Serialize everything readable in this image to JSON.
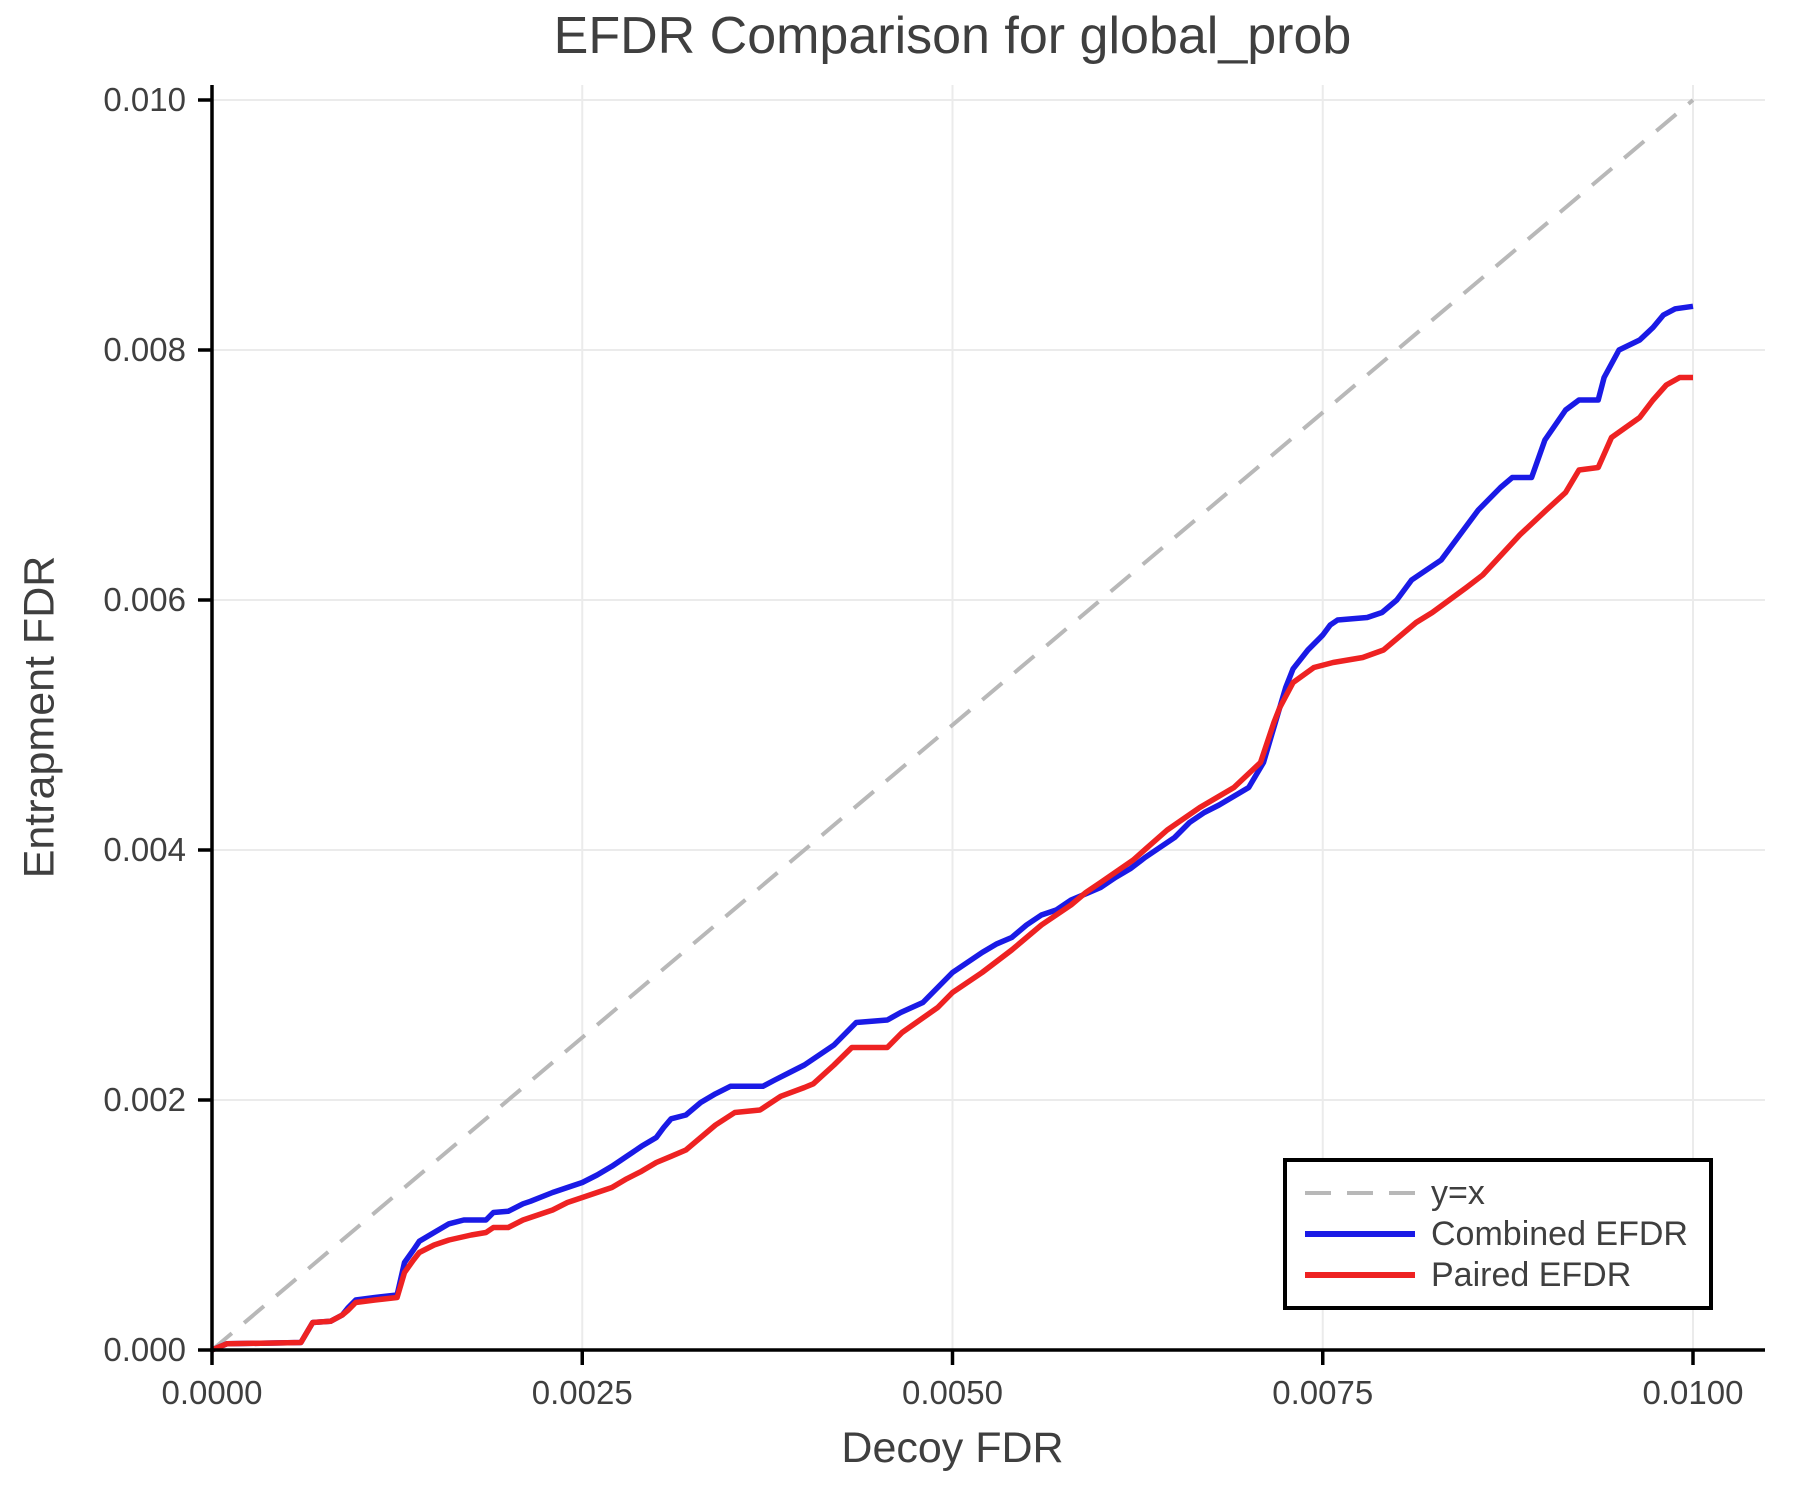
{
  "title": "EFDR Comparison for global_prob",
  "colors": {
    "background": "#ffffff",
    "text": "#3f3f3f",
    "axis": "#000000",
    "grid": "#ebebeb",
    "identity_line": "#b8b8b8",
    "combined_efdr": "#1a1ae6",
    "paired_efdr": "#ee2222"
  },
  "legend": {
    "position": "lower right",
    "entries": [
      "y=x",
      "Combined EFDR",
      "Paired EFDR"
    ]
  },
  "chart_data": {
    "type": "line",
    "title": "EFDR Comparison for global_prob",
    "xlabel": "Decoy FDR",
    "ylabel": "Entrapment FDR",
    "xlim": [
      0.0,
      0.01
    ],
    "ylim": [
      0.0,
      0.01
    ],
    "grid": true,
    "legend_position": "lower right",
    "x_ticks": [
      0.0,
      0.0025,
      0.005,
      0.0075,
      0.01
    ],
    "x_tick_labels": [
      "0.0000",
      "0.0025",
      "0.0050",
      "0.0075",
      "0.0100"
    ],
    "y_ticks": [
      0.0,
      0.002,
      0.004,
      0.006,
      0.008,
      0.01
    ],
    "y_tick_labels": [
      "0.000",
      "0.002",
      "0.004",
      "0.006",
      "0.008",
      "0.010"
    ],
    "series": [
      {
        "name": "y=x",
        "style": "dashed",
        "color": "#b8b8b8",
        "points": [
          [
            0.0,
            0.0
          ],
          [
            0.01,
            0.01
          ]
        ]
      },
      {
        "name": "Combined EFDR",
        "style": "solid",
        "color": "#1a1ae6",
        "points": [
          [
            0.0,
            0.0
          ],
          [
            0.0001,
            5e-05
          ],
          [
            0.0006,
            6e-05
          ],
          [
            0.00068,
            0.00022
          ],
          [
            0.0008,
            0.00023
          ],
          [
            0.00088,
            0.00028
          ],
          [
            0.00092,
            0.00034
          ],
          [
            0.00097,
            0.0004
          ],
          [
            0.0011,
            0.00042
          ],
          [
            0.00125,
            0.00044
          ],
          [
            0.0013,
            0.0007
          ],
          [
            0.00136,
            0.0008
          ],
          [
            0.0014,
            0.00087
          ],
          [
            0.0015,
            0.00094
          ],
          [
            0.0016,
            0.00101
          ],
          [
            0.0017,
            0.00104
          ],
          [
            0.00185,
            0.00104
          ],
          [
            0.0019,
            0.0011
          ],
          [
            0.002,
            0.00111
          ],
          [
            0.0021,
            0.00117
          ],
          [
            0.00215,
            0.00119
          ],
          [
            0.0023,
            0.00126
          ],
          [
            0.0024,
            0.0013
          ],
          [
            0.0025,
            0.00134
          ],
          [
            0.0026,
            0.0014
          ],
          [
            0.0027,
            0.00147
          ],
          [
            0.0028,
            0.00155
          ],
          [
            0.0029,
            0.00163
          ],
          [
            0.003,
            0.0017
          ],
          [
            0.00305,
            0.00178
          ],
          [
            0.0031,
            0.00185
          ],
          [
            0.0032,
            0.00188
          ],
          [
            0.0033,
            0.00198
          ],
          [
            0.0034,
            0.00205
          ],
          [
            0.0035,
            0.00211
          ],
          [
            0.00372,
            0.00211
          ],
          [
            0.0038,
            0.00216
          ],
          [
            0.0039,
            0.00222
          ],
          [
            0.004,
            0.00228
          ],
          [
            0.0041,
            0.00236
          ],
          [
            0.0042,
            0.00244
          ],
          [
            0.00425,
            0.0025
          ],
          [
            0.00435,
            0.00262
          ],
          [
            0.00456,
            0.00264
          ],
          [
            0.00465,
            0.0027
          ],
          [
            0.0048,
            0.00278
          ],
          [
            0.0049,
            0.0029
          ],
          [
            0.005,
            0.00302
          ],
          [
            0.0051,
            0.0031
          ],
          [
            0.0052,
            0.00318
          ],
          [
            0.0053,
            0.00325
          ],
          [
            0.0054,
            0.0033
          ],
          [
            0.0055,
            0.0034
          ],
          [
            0.0056,
            0.00348
          ],
          [
            0.0057,
            0.00352
          ],
          [
            0.0058,
            0.0036
          ],
          [
            0.0059,
            0.00365
          ],
          [
            0.006,
            0.0037
          ],
          [
            0.0061,
            0.00378
          ],
          [
            0.0062,
            0.00385
          ],
          [
            0.0063,
            0.00394
          ],
          [
            0.0064,
            0.00402
          ],
          [
            0.0065,
            0.0041
          ],
          [
            0.0066,
            0.00422
          ],
          [
            0.0067,
            0.0043
          ],
          [
            0.0068,
            0.00436
          ],
          [
            0.0069,
            0.00443
          ],
          [
            0.007,
            0.0045
          ],
          [
            0.0071,
            0.0047
          ],
          [
            0.00715,
            0.0049
          ],
          [
            0.0072,
            0.0051
          ],
          [
            0.00725,
            0.0053
          ],
          [
            0.0073,
            0.00545
          ],
          [
            0.0074,
            0.0056
          ],
          [
            0.0075,
            0.00572
          ],
          [
            0.00755,
            0.0058
          ],
          [
            0.0076,
            0.00584
          ],
          [
            0.0078,
            0.00586
          ],
          [
            0.0079,
            0.0059
          ],
          [
            0.008,
            0.006
          ],
          [
            0.0081,
            0.00616
          ],
          [
            0.0082,
            0.00624
          ],
          [
            0.0083,
            0.00632
          ],
          [
            0.0084,
            0.00648
          ],
          [
            0.00855,
            0.00672
          ],
          [
            0.0086,
            0.00678
          ],
          [
            0.0087,
            0.0069
          ],
          [
            0.00878,
            0.00698
          ],
          [
            0.00891,
            0.00698
          ],
          [
            0.009,
            0.00728
          ],
          [
            0.00914,
            0.00752
          ],
          [
            0.00923,
            0.0076
          ],
          [
            0.00936,
            0.0076
          ],
          [
            0.0094,
            0.00778
          ],
          [
            0.0095,
            0.008
          ],
          [
            0.00964,
            0.00808
          ],
          [
            0.00973,
            0.00818
          ],
          [
            0.0098,
            0.00828
          ],
          [
            0.00988,
            0.00833
          ],
          [
            0.01,
            0.00835
          ]
        ]
      },
      {
        "name": "Paired EFDR",
        "style": "solid",
        "color": "#ee2222",
        "points": [
          [
            0.0,
            0.0
          ],
          [
            0.0001,
            5e-05
          ],
          [
            0.0006,
            6e-05
          ],
          [
            0.00068,
            0.00022
          ],
          [
            0.0008,
            0.00023
          ],
          [
            0.00088,
            0.00028
          ],
          [
            0.00092,
            0.00032
          ],
          [
            0.00097,
            0.00038
          ],
          [
            0.0011,
            0.0004
          ],
          [
            0.00125,
            0.00042
          ],
          [
            0.0013,
            0.00062
          ],
          [
            0.00136,
            0.00072
          ],
          [
            0.0014,
            0.00078
          ],
          [
            0.0015,
            0.00084
          ],
          [
            0.0016,
            0.00088
          ],
          [
            0.00175,
            0.00092
          ],
          [
            0.00185,
            0.00094
          ],
          [
            0.0019,
            0.00098
          ],
          [
            0.002,
            0.00098
          ],
          [
            0.0021,
            0.00104
          ],
          [
            0.0022,
            0.00108
          ],
          [
            0.0023,
            0.00112
          ],
          [
            0.0024,
            0.00118
          ],
          [
            0.0025,
            0.00122
          ],
          [
            0.0026,
            0.00126
          ],
          [
            0.0027,
            0.0013
          ],
          [
            0.0028,
            0.00137
          ],
          [
            0.0029,
            0.00143
          ],
          [
            0.003,
            0.0015
          ],
          [
            0.0031,
            0.00155
          ],
          [
            0.0032,
            0.0016
          ],
          [
            0.0033,
            0.0017
          ],
          [
            0.0034,
            0.0018
          ],
          [
            0.00353,
            0.0019
          ],
          [
            0.0037,
            0.00192
          ],
          [
            0.00384,
            0.00203
          ],
          [
            0.004,
            0.0021
          ],
          [
            0.00406,
            0.00213
          ],
          [
            0.0042,
            0.00228
          ],
          [
            0.00432,
            0.00242
          ],
          [
            0.00456,
            0.00242
          ],
          [
            0.00466,
            0.00254
          ],
          [
            0.00478,
            0.00264
          ],
          [
            0.0049,
            0.00274
          ],
          [
            0.005,
            0.00286
          ],
          [
            0.0052,
            0.00302
          ],
          [
            0.0054,
            0.0032
          ],
          [
            0.0056,
            0.0034
          ],
          [
            0.0058,
            0.00356
          ],
          [
            0.0059,
            0.00366
          ],
          [
            0.006,
            0.00374
          ],
          [
            0.00622,
            0.00392
          ],
          [
            0.00645,
            0.00416
          ],
          [
            0.00667,
            0.00434
          ],
          [
            0.0069,
            0.0045
          ],
          [
            0.00708,
            0.0047
          ],
          [
            0.00717,
            0.00502
          ],
          [
            0.00721,
            0.00514
          ],
          [
            0.0073,
            0.00534
          ],
          [
            0.00744,
            0.00546
          ],
          [
            0.00757,
            0.0055
          ],
          [
            0.00777,
            0.00554
          ],
          [
            0.00791,
            0.0056
          ],
          [
            0.00813,
            0.00582
          ],
          [
            0.00824,
            0.0059
          ],
          [
            0.00847,
            0.0061
          ],
          [
            0.00858,
            0.0062
          ],
          [
            0.00883,
            0.00652
          ],
          [
            0.00901,
            0.00672
          ],
          [
            0.00914,
            0.00686
          ],
          [
            0.00923,
            0.00704
          ],
          [
            0.00936,
            0.00706
          ],
          [
            0.00945,
            0.0073
          ],
          [
            0.00964,
            0.00746
          ],
          [
            0.00973,
            0.0076
          ],
          [
            0.00982,
            0.00772
          ],
          [
            0.00991,
            0.00778
          ],
          [
            0.01,
            0.00778
          ]
        ]
      }
    ]
  }
}
